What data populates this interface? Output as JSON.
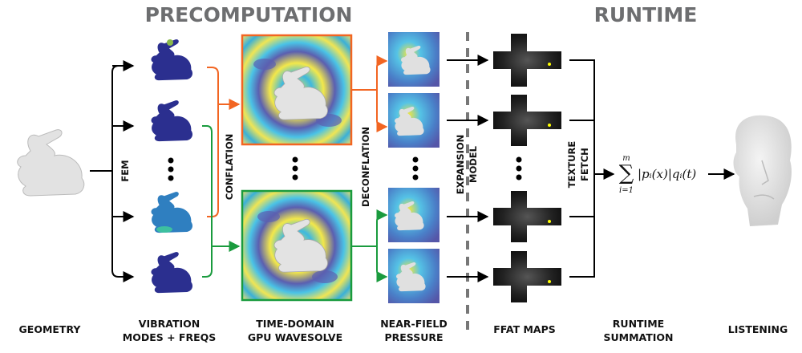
{
  "phases": {
    "precomputation": "PRECOMPUTATION",
    "runtime": "RUNTIME"
  },
  "stages": [
    {
      "line1": "GEOMETRY",
      "line2": ""
    },
    {
      "line1": "VIBRATION",
      "line2": "MODES + FREQS"
    },
    {
      "line1": "TIME-DOMAIN",
      "line2": "GPU WAVESOLVE"
    },
    {
      "line1": "NEAR-FIELD",
      "line2": "PRESSURE"
    },
    {
      "line1": "FFAT MAPS",
      "line2": ""
    },
    {
      "line1": "RUNTIME",
      "line2": "SUMMATION"
    },
    {
      "line1": "LISTENING",
      "line2": ""
    }
  ],
  "operations": {
    "fem": "FEM",
    "conflation": "CONFLATION",
    "deconflation": "DECONFLATION",
    "expansion1": "EXPANSION",
    "expansion2": "MODEL",
    "texture1": "TEXTURE",
    "texture2": "FETCH"
  },
  "formula": {
    "sum": "∑",
    "upper": "m",
    "lower": "i=1",
    "body": "|pᵢ(x)|qᵢ(t)"
  },
  "colors": {
    "conflation_a": "#f26522",
    "conflation_b": "#1a9b3e",
    "mode_bunny": "#2b2f8f",
    "phase_title": "#6d6e70"
  }
}
